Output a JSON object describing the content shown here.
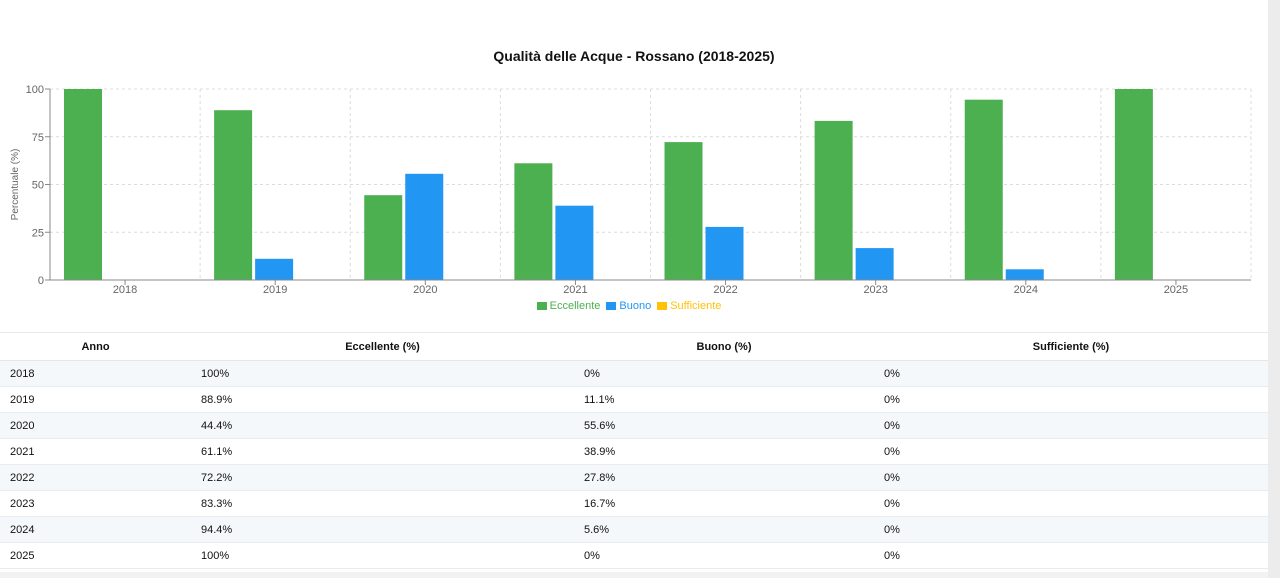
{
  "chart_data": {
    "type": "bar",
    "title": "Qualità delle Acque - Rossano (2018-2025)",
    "xlabel": "",
    "ylabel": "Percentuale (%)",
    "ylim": [
      0,
      100
    ],
    "yticks": [
      0,
      25,
      50,
      75,
      100
    ],
    "categories": [
      "2018",
      "2019",
      "2020",
      "2021",
      "2022",
      "2023",
      "2024",
      "2025"
    ],
    "series": [
      {
        "name": "Eccellente",
        "color": "#4caf50",
        "values": [
          100,
          88.9,
          44.4,
          61.1,
          72.2,
          83.3,
          94.4,
          100
        ]
      },
      {
        "name": "Buono",
        "color": "#2196f3",
        "values": [
          0,
          11.1,
          55.6,
          38.9,
          27.8,
          16.7,
          5.6,
          0
        ]
      },
      {
        "name": "Sufficiente",
        "color": "#ffc107",
        "values": [
          0,
          0,
          0,
          0,
          0,
          0,
          0,
          0
        ]
      }
    ],
    "grid": true,
    "legend_position": "bottom"
  },
  "table": {
    "headers": [
      "Anno",
      "Eccellente (%)",
      "Buono (%)",
      "Sufficiente (%)"
    ],
    "rows": [
      [
        "2018",
        "100%",
        "0%",
        "0%"
      ],
      [
        "2019",
        "88.9%",
        "11.1%",
        "0%"
      ],
      [
        "2020",
        "44.4%",
        "55.6%",
        "0%"
      ],
      [
        "2021",
        "61.1%",
        "38.9%",
        "0%"
      ],
      [
        "2022",
        "72.2%",
        "27.8%",
        "0%"
      ],
      [
        "2023",
        "83.3%",
        "16.7%",
        "0%"
      ],
      [
        "2024",
        "94.4%",
        "5.6%",
        "0%"
      ],
      [
        "2025",
        "100%",
        "0%",
        "0%"
      ]
    ]
  }
}
